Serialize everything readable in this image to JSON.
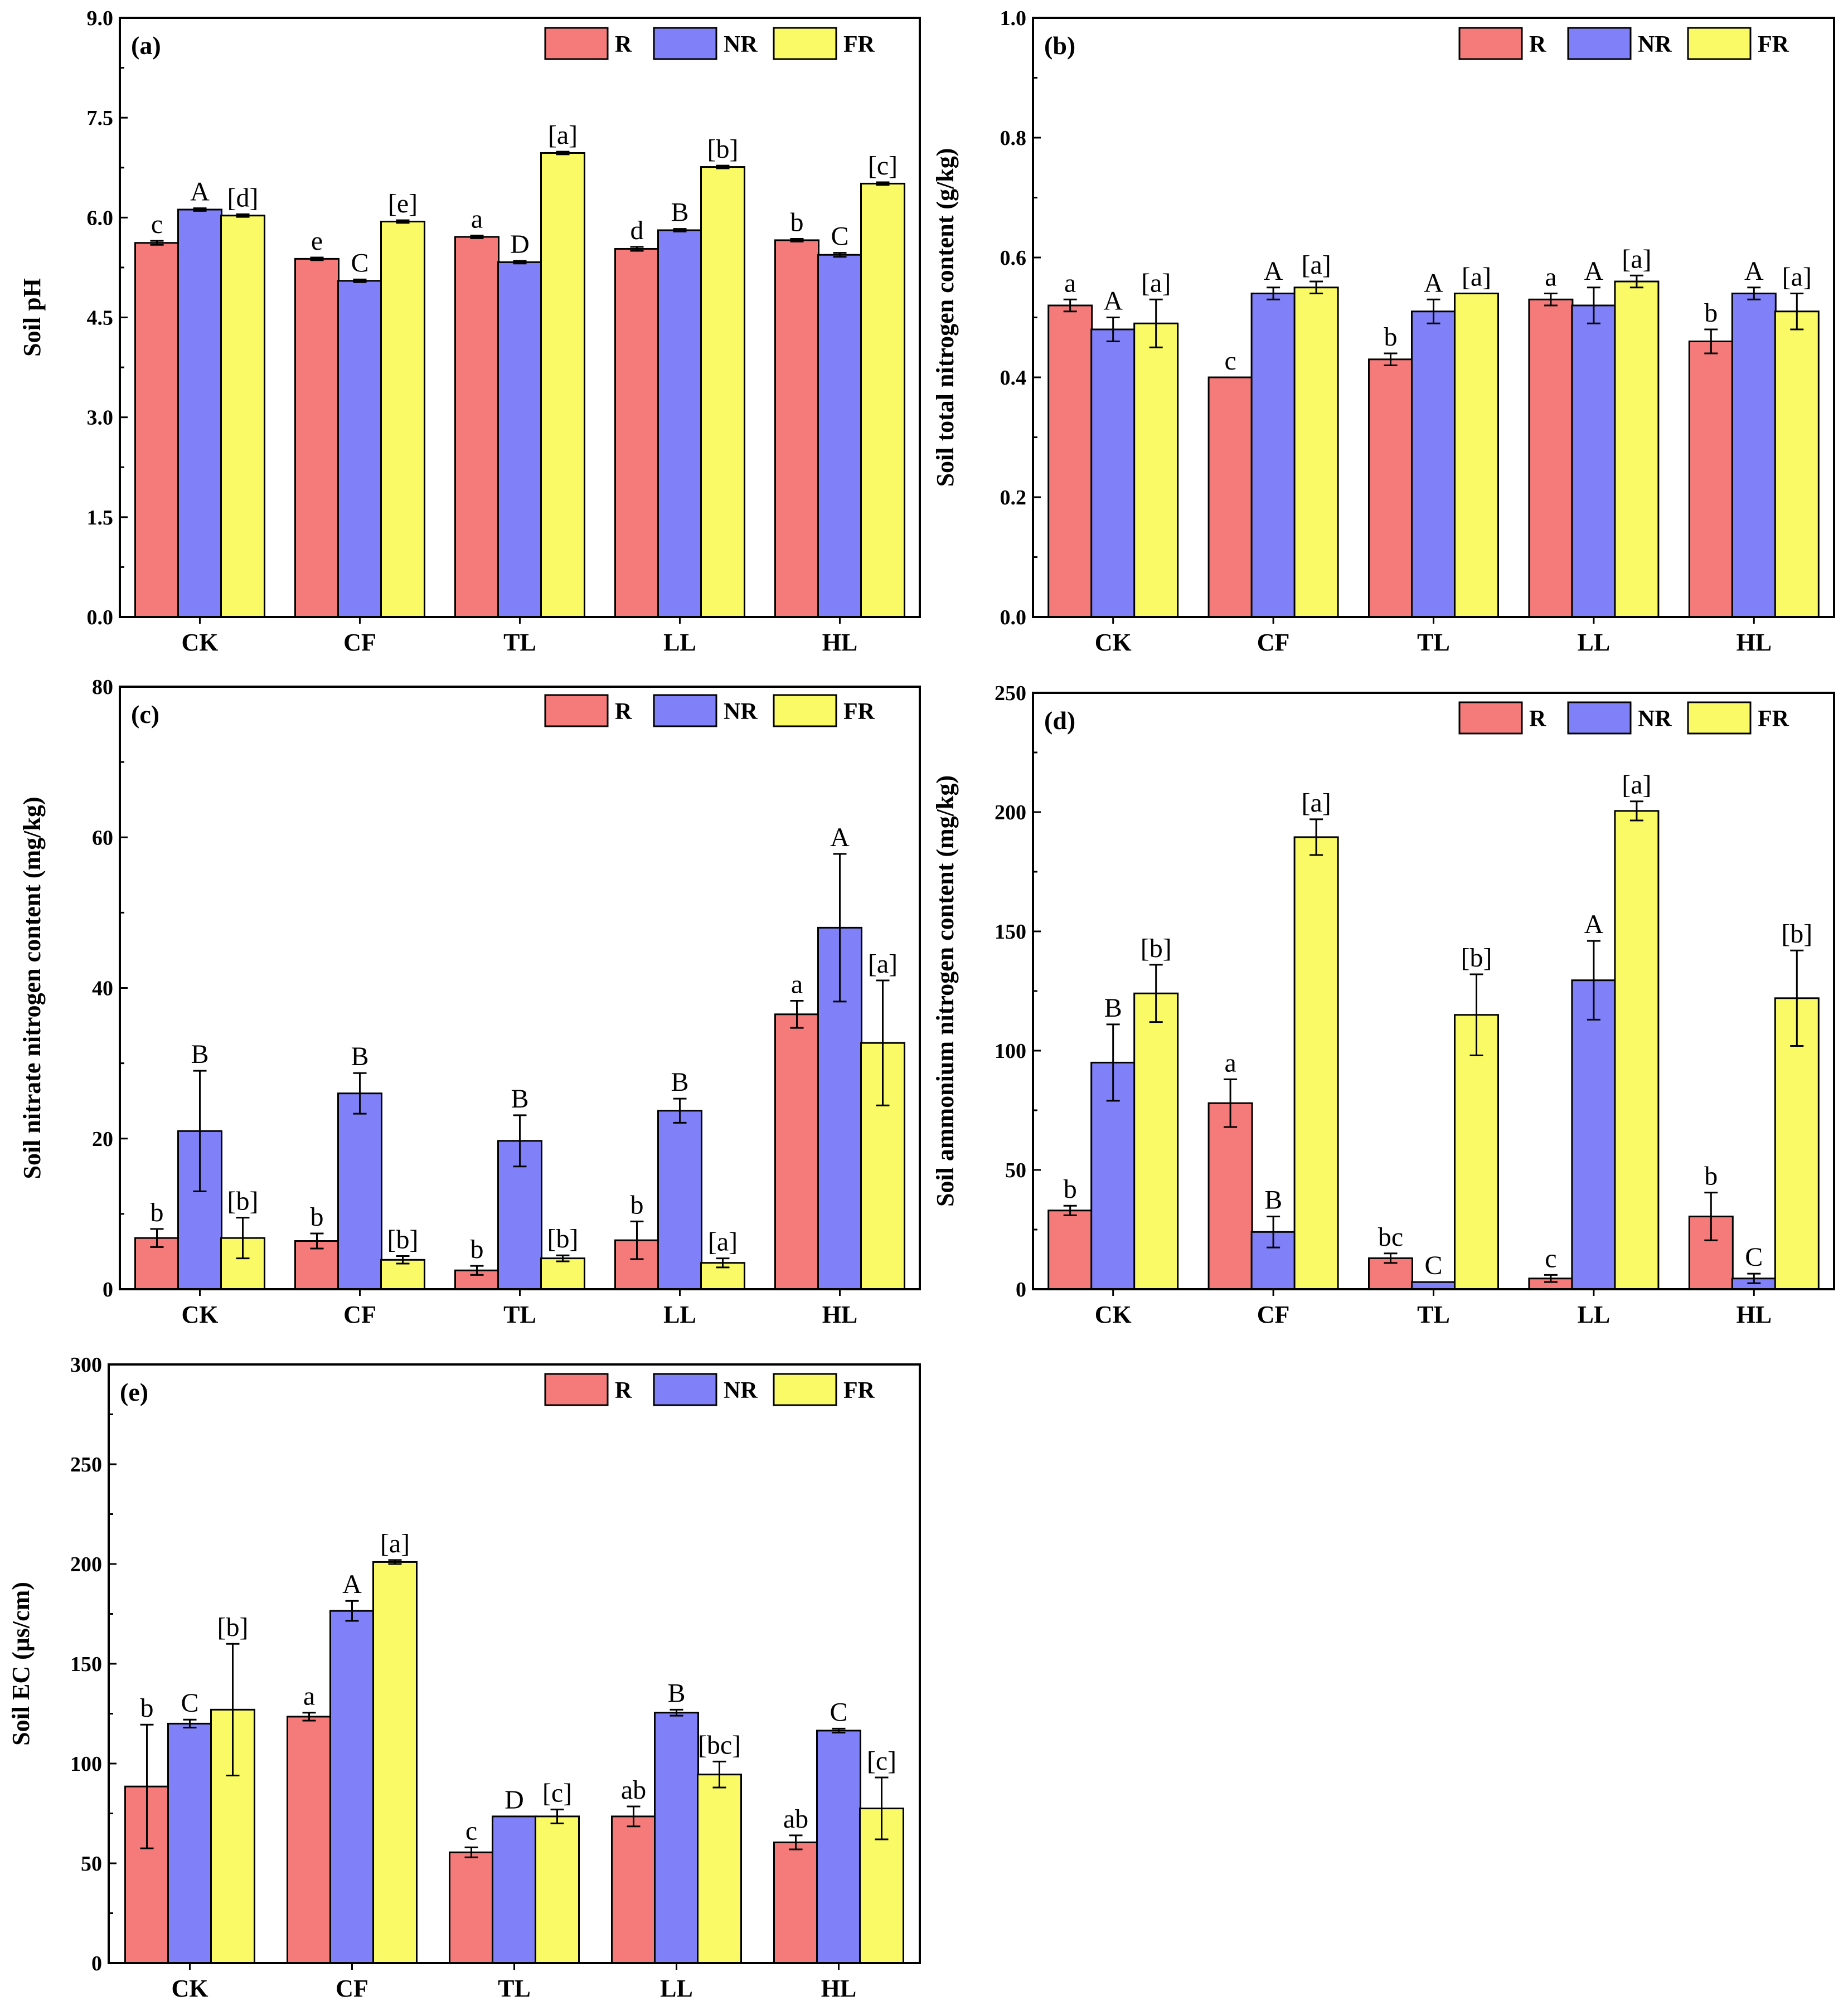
{
  "legend": [
    {
      "name": "R",
      "color": "#f57a7a"
    },
    {
      "name": "NR",
      "color": "#8080f8"
    },
    {
      "name": "FR",
      "color": "#fafa66"
    }
  ],
  "chart_data": [
    {
      "type": "bar",
      "panel_label": "(a)",
      "ylabel": "Soil pH",
      "ylim": [
        0,
        9
      ],
      "yticks": [
        "0.0",
        "1.5",
        "3.0",
        "4.5",
        "6.0",
        "7.5",
        "9.0"
      ],
      "categories": [
        "CK",
        "CF",
        "TL",
        "LL",
        "HL"
      ],
      "legend_position": "top-right",
      "series": [
        {
          "name": "R",
          "values": [
            5.62,
            5.38,
            5.71,
            5.53,
            5.66
          ],
          "errors": [
            0.03,
            0.02,
            0.02,
            0.03,
            0.02
          ],
          "letters": [
            "c",
            "e",
            "a",
            "d",
            "b"
          ]
        },
        {
          "name": "NR",
          "values": [
            6.12,
            5.05,
            5.33,
            5.81,
            5.44
          ],
          "errors": [
            0.02,
            0.02,
            0.02,
            0.02,
            0.03
          ],
          "letters": [
            "A",
            "C",
            "D",
            "B",
            "C"
          ]
        },
        {
          "name": "FR",
          "values": [
            6.03,
            5.94,
            6.97,
            6.76,
            6.51
          ],
          "errors": [
            0.02,
            0.02,
            0.02,
            0.02,
            0.02
          ],
          "letters": [
            "[d]",
            "[e]",
            "[a]",
            "[b]",
            "[c]"
          ]
        }
      ]
    },
    {
      "type": "bar",
      "panel_label": "(b)",
      "ylabel": "Soil total nitrogen content (g/kg)",
      "ylim": [
        0,
        1
      ],
      "yticks": [
        "0.0",
        "0.2",
        "0.4",
        "0.6",
        "0.8",
        "1.0"
      ],
      "categories": [
        "CK",
        "CF",
        "TL",
        "LL",
        "HL"
      ],
      "legend_position": "top-right",
      "series": [
        {
          "name": "R",
          "values": [
            0.52,
            0.4,
            0.43,
            0.53,
            0.46
          ],
          "errors": [
            0.01,
            0.0,
            0.01,
            0.01,
            0.02
          ],
          "letters": [
            "a",
            "c",
            "b",
            "a",
            "b"
          ]
        },
        {
          "name": "NR",
          "values": [
            0.48,
            0.54,
            0.51,
            0.52,
            0.54
          ],
          "errors": [
            0.02,
            0.01,
            0.02,
            0.03,
            0.01
          ],
          "letters": [
            "A",
            "A",
            "A",
            "A",
            "A"
          ]
        },
        {
          "name": "FR",
          "values": [
            0.49,
            0.55,
            0.54,
            0.56,
            0.51
          ],
          "errors": [
            0.04,
            0.01,
            0.0,
            0.01,
            0.03
          ],
          "letters": [
            "[a]",
            "[a]",
            "[a]",
            "[a]",
            "[a]"
          ]
        }
      ]
    },
    {
      "type": "bar",
      "panel_label": "(c)",
      "ylabel": "Soil nitrate nitrogen content (mg/kg)",
      "ylim": [
        0,
        80
      ],
      "yticks": [
        "0",
        "20",
        "40",
        "60",
        "80"
      ],
      "categories": [
        "CK",
        "CF",
        "TL",
        "LL",
        "HL"
      ],
      "legend_position": "top-right",
      "series": [
        {
          "name": "R",
          "values": [
            6.8,
            6.4,
            2.5,
            6.5,
            36.5
          ],
          "errors": [
            1.2,
            1.0,
            0.6,
            2.5,
            1.8
          ],
          "letters": [
            "b",
            "b",
            "b",
            "b",
            "a"
          ]
        },
        {
          "name": "NR",
          "values": [
            21.0,
            26.0,
            19.7,
            23.7,
            48.0
          ],
          "errors": [
            8.0,
            2.7,
            3.4,
            1.6,
            9.8
          ],
          "letters": [
            "B",
            "B",
            "B",
            "B",
            "A"
          ]
        },
        {
          "name": "FR",
          "values": [
            6.8,
            3.9,
            4.1,
            3.5,
            32.7
          ],
          "errors": [
            2.7,
            0.5,
            0.4,
            0.6,
            8.3
          ],
          "letters": [
            "[b]",
            "[b]",
            "[b]",
            "[a]",
            "[a]"
          ]
        }
      ]
    },
    {
      "type": "bar",
      "panel_label": "(d)",
      "ylabel": "Soil ammonium nitrogen content (mg/kg)",
      "ylim": [
        0,
        250
      ],
      "yticks": [
        "0",
        "50",
        "100",
        "150",
        "200",
        "250"
      ],
      "categories": [
        "CK",
        "CF",
        "TL",
        "LL",
        "HL"
      ],
      "legend_position": "top-right",
      "series": [
        {
          "name": "R",
          "values": [
            33,
            78,
            13,
            4.5,
            30.5
          ],
          "errors": [
            2,
            10,
            2,
            1.5,
            10
          ],
          "letters": [
            "b",
            "a",
            "bc",
            "c",
            "b"
          ]
        },
        {
          "name": "NR",
          "values": [
            95,
            24,
            3,
            129.5,
            4.5
          ],
          "errors": [
            16,
            6.5,
            0,
            16.5,
            2
          ],
          "letters": [
            "B",
            "B",
            "C",
            "A",
            "C"
          ]
        },
        {
          "name": "FR",
          "values": [
            124,
            189.5,
            115,
            200.5,
            122
          ],
          "errors": [
            12,
            7.5,
            17,
            4,
            20
          ],
          "letters": [
            "[b]",
            "[a]",
            "[b]",
            "[a]",
            "[b]"
          ]
        }
      ]
    },
    {
      "type": "bar",
      "panel_label": "(e)",
      "ylabel": "Soil EC (μs/cm)",
      "ylim": [
        0,
        300
      ],
      "yticks": [
        "0",
        "50",
        "100",
        "150",
        "200",
        "250",
        "300"
      ],
      "categories": [
        "CK",
        "CF",
        "TL",
        "LL",
        "HL"
      ],
      "legend_position": "top-right",
      "series": [
        {
          "name": "R",
          "values": [
            88.5,
            123.5,
            55.5,
            73.5,
            60.5
          ],
          "errors": [
            31,
            2,
            2.5,
            5,
            3.5
          ],
          "letters": [
            "b",
            "a",
            "c",
            "ab",
            "ab"
          ]
        },
        {
          "name": "NR",
          "values": [
            120,
            176.5,
            73.5,
            125.5,
            116.5
          ],
          "errors": [
            2,
            5,
            0,
            1.5,
            1
          ],
          "letters": [
            "C",
            "A",
            "D",
            "B",
            "C"
          ]
        },
        {
          "name": "FR",
          "values": [
            127,
            201,
            73.5,
            94.5,
            77.5
          ],
          "errors": [
            33,
            1,
            3.5,
            6.5,
            15.5
          ],
          "letters": [
            "[b]",
            "[a]",
            "[c]",
            "[bc]",
            "[c]"
          ]
        }
      ]
    }
  ]
}
